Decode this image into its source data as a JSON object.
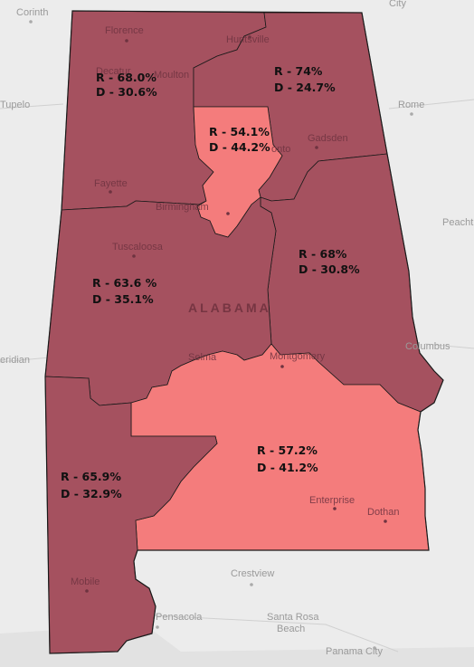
{
  "state_label": "ALABAMA",
  "outside_cities": {
    "corinth": "Corinth",
    "tupelo": "Tupelo",
    "meridian": "eridian",
    "rome": "Rome",
    "peachtree": "Peacht",
    "columbus": "Columbus",
    "crestview": "Crestview",
    "pensacola": "Pensacola",
    "santa_rosa": "Santa Rosa",
    "beach": "Beach",
    "panama_city": "Panama City",
    "top_right": "City"
  },
  "inside_cities": {
    "florence": "Florence",
    "huntsville": "Huntsville",
    "moulton": "Moulton",
    "decatur": "Decatur",
    "gadsden": "Gadsden",
    "fayette": "Fayette",
    "birmingham": "Birmingham",
    "tuscaloosa": "Tuscaloosa",
    "montgomery": "Montgomery",
    "selma": "Selma",
    "enterprise": "Enterprise",
    "dothan": "Dothan",
    "mobile": "Mobile",
    "anniston": "onto"
  },
  "districts": [
    {
      "id": 1,
      "r": "R - 65.9%",
      "d": "D - 32.9%",
      "color": "#a5515f"
    },
    {
      "id": 2,
      "r": "R - 57.2%",
      "d": "D - 41.2%",
      "color": "#f47c7c"
    },
    {
      "id": 3,
      "r": "R - 68%",
      "d": "D - 30.8%",
      "color": "#a5515f"
    },
    {
      "id": 4,
      "r": "R - 68.0%",
      "d": "D - 30.6%",
      "color": "#a5515f"
    },
    {
      "id": 5,
      "r": "R - 74%",
      "d": "D - 24.7%",
      "color": "#a5515f"
    },
    {
      "id": 6,
      "r": "R - 54.1%",
      "d": "D - 44.2%",
      "color": "#f47c7c"
    },
    {
      "id": 7,
      "r": "R - 63.6 %",
      "d": "D - 35.1%",
      "color": "#a5515f"
    }
  ]
}
